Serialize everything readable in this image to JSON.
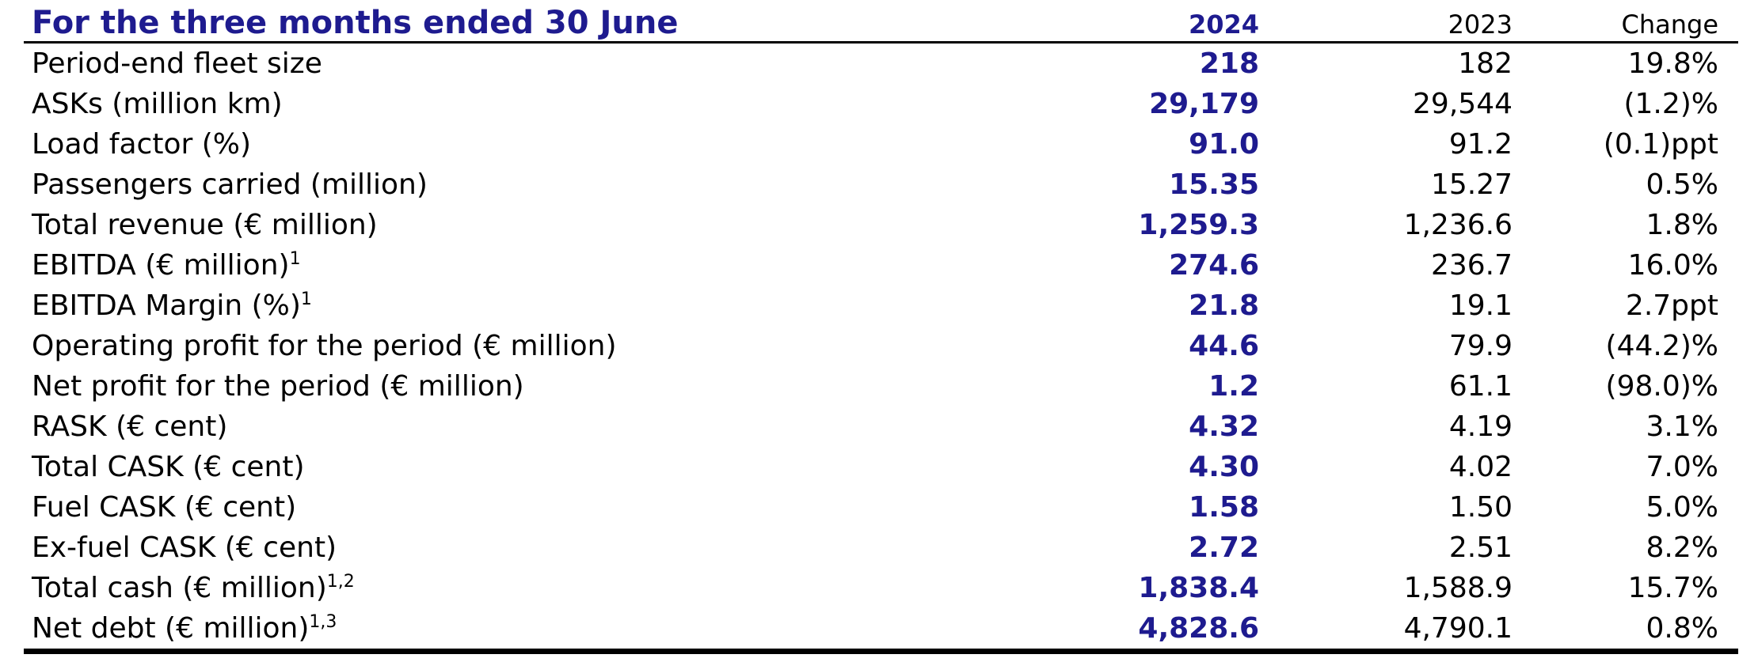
{
  "colors": {
    "accent_navy": "#1e1b8f",
    "text": "#000000",
    "rule": "#000000",
    "background": "#ffffff"
  },
  "table": {
    "title": "For the three months ended 30 June",
    "columns": [
      "2024",
      "2023",
      "Change"
    ],
    "rows": [
      {
        "label": "Period-end fleet size",
        "sup": "",
        "v2024": "218",
        "v2023": "182",
        "change": "19.8%"
      },
      {
        "label": "ASKs (million km)",
        "sup": "",
        "v2024": "29,179",
        "v2023": "29,544",
        "change": "(1.2)%"
      },
      {
        "label": "Load factor (%)",
        "sup": "",
        "v2024": "91.0",
        "v2023": "91.2",
        "change": "(0.1)ppt"
      },
      {
        "label": "Passengers carried (million)",
        "sup": "",
        "v2024": "15.35",
        "v2023": "15.27",
        "change": "0.5%"
      },
      {
        "label": "Total revenue (€ million)",
        "sup": "",
        "v2024": "1,259.3",
        "v2023": "1,236.6",
        "change": "1.8%"
      },
      {
        "label": "EBITDA (€ million)",
        "sup": "1",
        "v2024": "274.6",
        "v2023": "236.7",
        "change": "16.0%"
      },
      {
        "label": "EBITDA Margin (%)",
        "sup": "1",
        "v2024": "21.8",
        "v2023": "19.1",
        "change": "2.7ppt"
      },
      {
        "label": "Operating profit for the period (€ million)",
        "sup": "",
        "v2024": "44.6",
        "v2023": "79.9",
        "change": "(44.2)%"
      },
      {
        "label": "Net profit for the period (€ million)",
        "sup": "",
        "v2024": "1.2",
        "v2023": "61.1",
        "change": "(98.0)%"
      },
      {
        "label": "RASK (€ cent)",
        "sup": "",
        "v2024": "4.32",
        "v2023": "4.19",
        "change": "3.1%"
      },
      {
        "label": "Total CASK (€ cent)",
        "sup": "",
        "v2024": "4.30",
        "v2023": "4.02",
        "change": "7.0%"
      },
      {
        "label": "Fuel CASK (€ cent)",
        "sup": "",
        "v2024": "1.58",
        "v2023": "1.50",
        "change": "5.0%"
      },
      {
        "label": "Ex-fuel CASK (€ cent)",
        "sup": "",
        "v2024": "2.72",
        "v2023": "2.51",
        "change": "8.2%"
      },
      {
        "label": "Total cash (€ million)",
        "sup": "1,2",
        "v2024": "1,838.4",
        "v2023": "1,588.9",
        "change": "15.7%"
      },
      {
        "label": "Net debt (€ million)",
        "sup": "1,3",
        "v2024": "4,828.6",
        "v2023": "4,790.1",
        "change": "0.8%"
      }
    ]
  }
}
